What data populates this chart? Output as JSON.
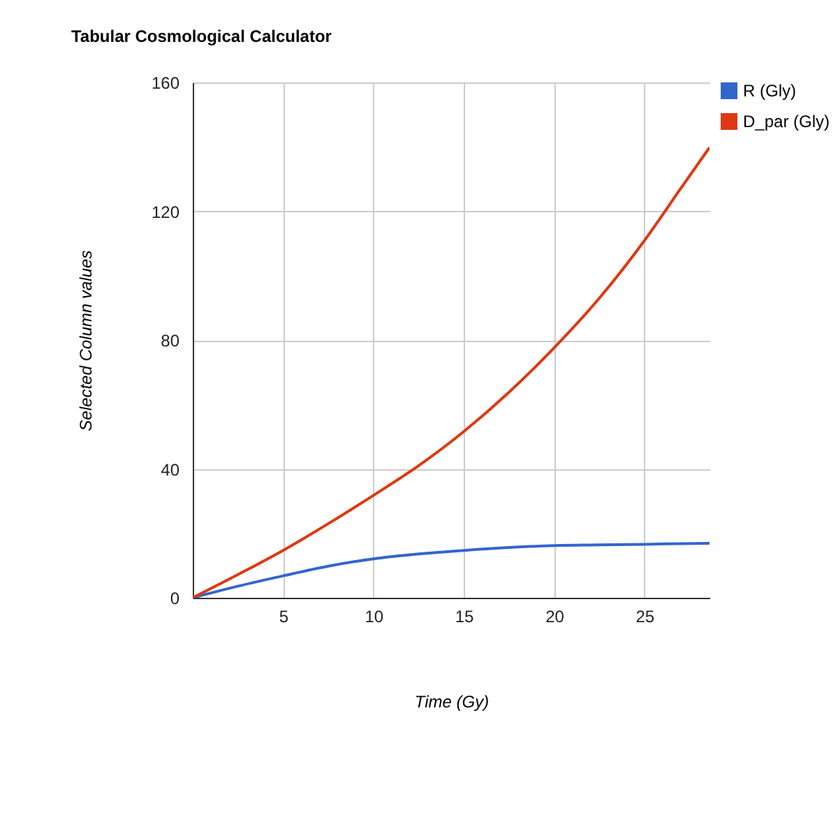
{
  "chart_data": {
    "type": "line",
    "title": "Tabular Cosmological Calculator",
    "xlabel": "Time (Gy)",
    "ylabel": "Selected Column values",
    "x": [
      0,
      2.5,
      5,
      7.5,
      10,
      12.5,
      15,
      17.5,
      20,
      22.5,
      25,
      27,
      28.6
    ],
    "series": [
      {
        "name": "R (Gly)",
        "color": "#3366cc",
        "values": [
          0,
          3.6,
          6.8,
          9.8,
          12.1,
          13.6,
          14.7,
          15.6,
          16.2,
          16.4,
          16.6,
          16.8,
          16.9
        ]
      },
      {
        "name": "D_par (Gly)",
        "color": "#dc3912",
        "values": [
          0,
          7.2,
          14.7,
          23,
          31.8,
          41,
          51.6,
          63.8,
          77.6,
          93,
          110.9,
          127,
          139.8
        ]
      }
    ],
    "xlim": [
      0,
      28.6
    ],
    "xticks": [
      5,
      10,
      15,
      20,
      25
    ],
    "ylim": [
      0,
      160
    ],
    "yticks": [
      0,
      40,
      80,
      120,
      160
    ],
    "grid": true,
    "legend": "top right",
    "marker": "none",
    "line_style": "solid"
  }
}
